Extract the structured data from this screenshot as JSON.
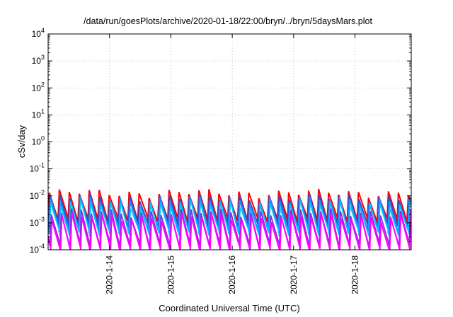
{
  "chart_data": {
    "type": "line",
    "title": "/data/run/goesPlots/archive/2020-01-18/22:00/bryn/../bryn/5daysMars.plot",
    "xlabel": "Coordinated Universal Time (UTC)",
    "ylabel": "cSv/day",
    "yscale": "log",
    "ylim": [
      0.0001,
      10000
    ],
    "yticks": [
      {
        "value": 0.0001,
        "base": "10",
        "exp": "-4"
      },
      {
        "value": 0.001,
        "base": "10",
        "exp": "-3"
      },
      {
        "value": 0.01,
        "base": "10",
        "exp": "-2"
      },
      {
        "value": 0.1,
        "base": "10",
        "exp": "-1"
      },
      {
        "value": 1,
        "base": "10",
        "exp": "0"
      },
      {
        "value": 10,
        "base": "10",
        "exp": "1"
      },
      {
        "value": 100,
        "base": "10",
        "exp": "2"
      },
      {
        "value": 1000,
        "base": "10",
        "exp": "3"
      },
      {
        "value": 10000,
        "base": "10",
        "exp": "4"
      }
    ],
    "xlim": [
      "2020-01-13T00:00",
      "2020-01-18T22:00"
    ],
    "xticks": [
      "2020-1-14",
      "2020-1-15",
      "2020-1-16",
      "2020-1-17",
      "2020-1-18"
    ],
    "grid": true,
    "cycle_hours": 3.9,
    "series": [
      {
        "color": "#ff0000",
        "peak": 0.013,
        "trough": 0.0013,
        "width": 2.0,
        "phase": 0.0
      },
      {
        "color": "#2b4fd6",
        "peak": 0.009,
        "trough": 0.0008,
        "width": 2.0,
        "phase": 0.05
      },
      {
        "color": "#1e90ff",
        "peak": 0.007,
        "trough": 0.0005,
        "width": 2.0,
        "phase": 0.1
      },
      {
        "color": "#00c8ff",
        "peak": 0.005,
        "trough": 0.0004,
        "width": 1.5,
        "phase": 0.15
      },
      {
        "color": "#8a2be2",
        "peak": 0.0025,
        "trough": 0.00015,
        "width": 1.8,
        "phase": 0.2
      },
      {
        "color": "#ff00ff",
        "peak": 0.0017,
        "trough": 0.0001,
        "width": 2.0,
        "phase": 0.25
      }
    ]
  }
}
